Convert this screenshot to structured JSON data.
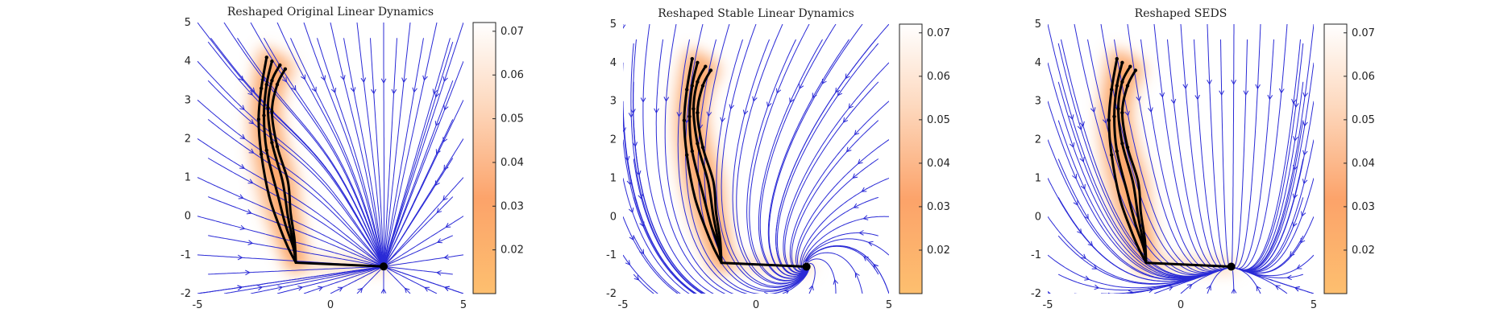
{
  "chart_data": [
    {
      "type": "streamplot",
      "title": "Reshaped Original Linear Dynamics",
      "xlim": [
        -5,
        5
      ],
      "ylim": [
        -2,
        5
      ],
      "xticks": [
        -5,
        0,
        5
      ],
      "yticks": [
        -2,
        -1,
        0,
        1,
        2,
        3,
        4,
        5
      ],
      "field": "radial",
      "target": [
        2,
        -1.3
      ],
      "colorbar": {
        "min": 0.01,
        "max": 0.072,
        "ticks": [
          0.02,
          0.03,
          0.04,
          0.05,
          0.06,
          0.07
        ]
      }
    },
    {
      "type": "streamplot",
      "title": "Reshaped Stable Linear Dynamics",
      "xlim": [
        -5,
        5
      ],
      "ylim": [
        -2,
        5
      ],
      "xticks": [
        -5,
        0,
        5
      ],
      "yticks": [
        -2,
        -1,
        0,
        1,
        2,
        3,
        4,
        5
      ],
      "field": "stable",
      "target": [
        1.9,
        -1.3
      ],
      "colorbar": {
        "min": 0.01,
        "max": 0.072,
        "ticks": [
          0.02,
          0.03,
          0.04,
          0.05,
          0.06,
          0.07
        ]
      }
    },
    {
      "type": "streamplot",
      "title": "Reshaped SEDS",
      "xlim": [
        -5,
        5
      ],
      "ylim": [
        -2,
        5
      ],
      "xticks": [
        -5,
        0,
        5
      ],
      "yticks": [
        -2,
        -1,
        0,
        1,
        2,
        3,
        4,
        5
      ],
      "field": "seds",
      "target": [
        1.9,
        -1.3
      ],
      "colorbar": {
        "min": 0.01,
        "max": 0.072,
        "ticks": [
          0.02,
          0.03,
          0.04,
          0.05,
          0.06,
          0.07
        ]
      }
    }
  ],
  "demonstrations": [
    [
      [
        -2.4,
        4.1
      ],
      [
        -2.6,
        3.3
      ],
      [
        -2.7,
        2.5
      ],
      [
        -2.6,
        1.6
      ],
      [
        -2.3,
        0.5
      ],
      [
        -1.9,
        -0.3
      ],
      [
        -1.6,
        -0.8
      ],
      [
        -1.3,
        -1.2
      ]
    ],
    [
      [
        -2.2,
        4.0
      ],
      [
        -2.4,
        3.4
      ],
      [
        -2.5,
        2.6
      ],
      [
        -2.4,
        1.7
      ],
      [
        -2.0,
        0.6
      ],
      [
        -1.7,
        -0.2
      ],
      [
        -1.4,
        -0.8
      ],
      [
        -1.3,
        -1.2
      ]
    ],
    [
      [
        -1.9,
        3.9
      ],
      [
        -2.2,
        3.5
      ],
      [
        -2.35,
        2.8
      ],
      [
        -2.2,
        1.9
      ],
      [
        -1.8,
        0.9
      ],
      [
        -1.6,
        0.0
      ],
      [
        -1.4,
        -0.7
      ],
      [
        -1.3,
        -1.2
      ]
    ],
    [
      [
        -1.7,
        3.8
      ],
      [
        -2.0,
        3.4
      ],
      [
        -2.2,
        2.7
      ],
      [
        -2.0,
        1.8
      ],
      [
        -1.6,
        0.9
      ],
      [
        -1.5,
        0.1
      ],
      [
        -1.35,
        -0.6
      ],
      [
        -1.3,
        -1.2
      ]
    ]
  ],
  "final_leg": [
    [
      -1.3,
      -1.2
    ],
    [
      2.0,
      -1.3
    ]
  ]
}
